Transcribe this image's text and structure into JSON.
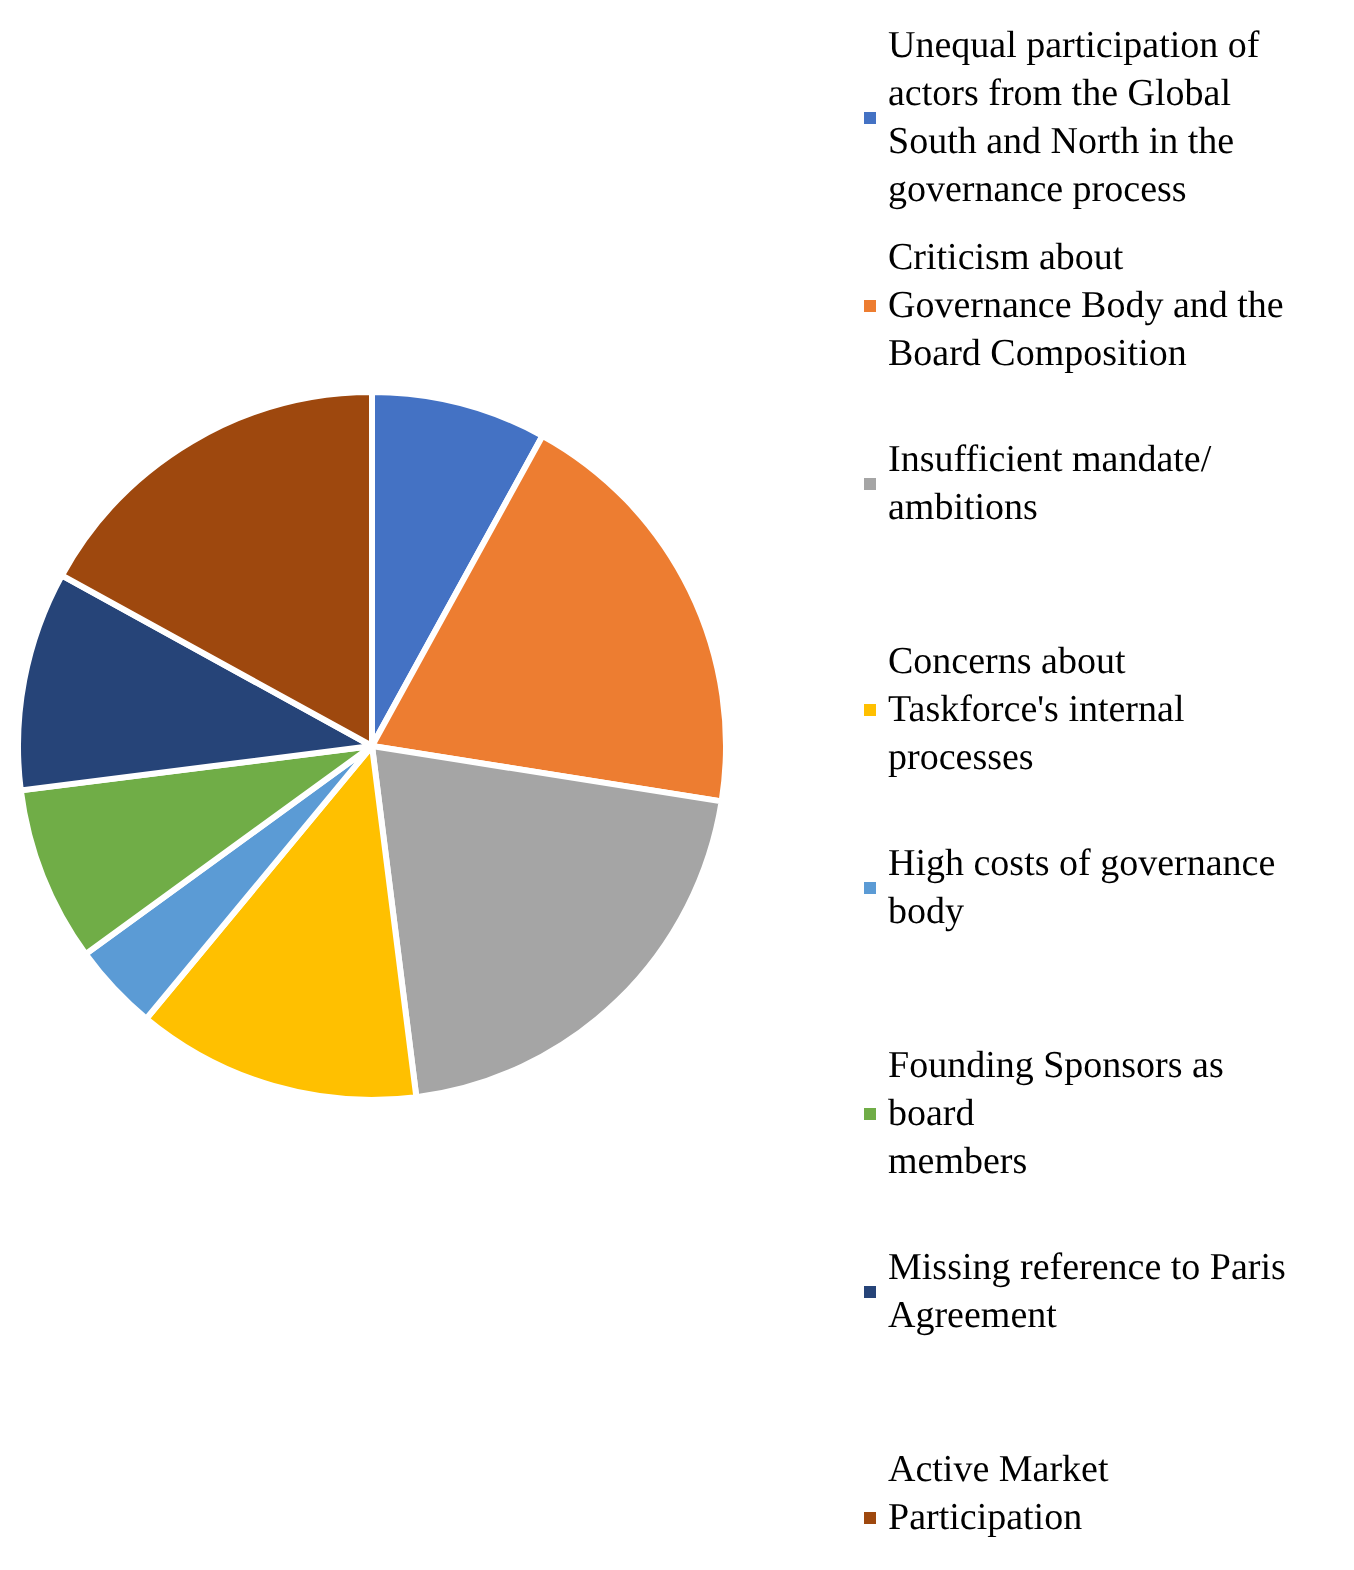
{
  "chart_data": {
    "type": "pie",
    "categories": [
      "Unequal participation of actors from the Global South and North in the governance process",
      "Criticism about Governance Body and the Board Composition",
      "Insufficient mandate/ ambitions",
      "Concerns about Taskforce's internal processes",
      "High costs of governance body",
      "Founding Sponsors as board members",
      "Missing reference to Paris Agreement",
      "Active Market Participation"
    ],
    "values": [
      8,
      19.5,
      20.5,
      13,
      4,
      8,
      10,
      17
    ],
    "colors": [
      "#4472c4",
      "#ed7d31",
      "#a5a5a5",
      "#ffc000",
      "#5b9bd5",
      "#70ad47",
      "#264478",
      "#9e480e"
    ],
    "legend": "right"
  }
}
